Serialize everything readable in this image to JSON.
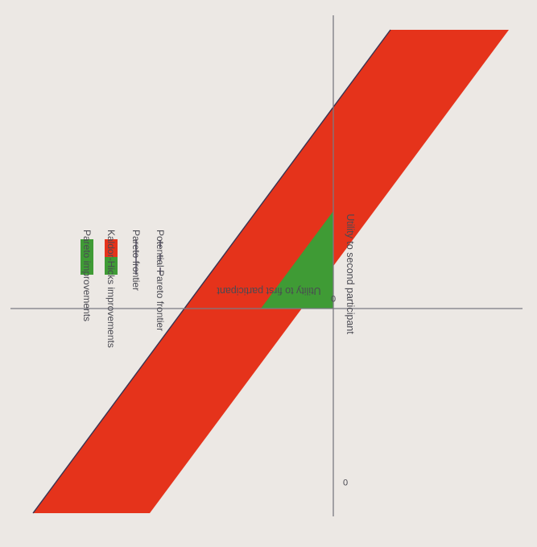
{
  "diagram": {
    "x_axis_label": "Utility to first participant",
    "y_axis_label": "Utility to second participant",
    "x_origin_label": "0",
    "y_origin_label": "0",
    "legend": [
      {
        "key": "pareto-improvements",
        "label": "Pareto improvements",
        "swatch_color": "#3f9b35"
      },
      {
        "key": "kaldor-hicks-improvements",
        "label": "Kaldor-Hicks improvements",
        "swatch_color": "#e5331b",
        "swatch_color_top": "#3f9b35"
      },
      {
        "key": "pareto-frontier",
        "label": "Pareto frontier",
        "line_style": "solid"
      },
      {
        "key": "potential-pareto-frontier",
        "label": "Potential Pareto frontier",
        "line_style": "dashed"
      }
    ],
    "colors": {
      "pareto_region": "#3f9b35",
      "kaldor_hicks_region": "#e5331b",
      "axis_line": "#7a7a82",
      "frontier_line": "#3a3250",
      "background": "#ece8e4"
    }
  }
}
